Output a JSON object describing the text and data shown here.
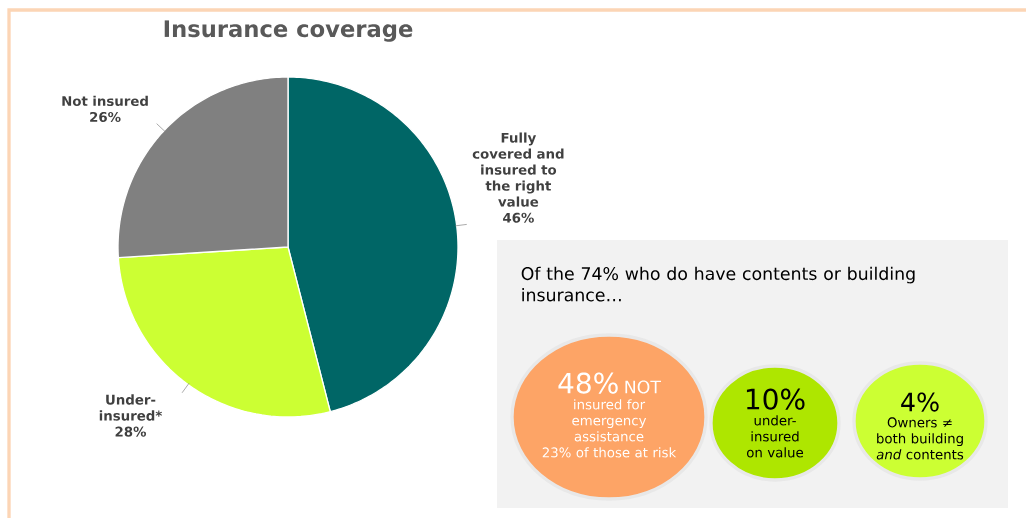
{
  "chart_data": [
    {
      "type": "pie",
      "title": "Insurance coverage",
      "categories": [
        "Fully covered and insured to the right value",
        "Under-insured*",
        "Not insured"
      ],
      "values": [
        46,
        28,
        26
      ],
      "colors": [
        "#006666",
        "#ccff33",
        "#808080"
      ],
      "value_labels": [
        "46%",
        "28%",
        "26%"
      ]
    },
    {
      "type": "other",
      "title": "Of the 74% who do have contents or building insurance…",
      "annotations": [
        "48%",
        "NOT",
        "insured for emergency assistance",
        "23% of those at risk",
        "10%",
        "under-insured on value",
        "4%",
        "Owners ≠ both building *and* contents"
      ]
    }
  ]
}
